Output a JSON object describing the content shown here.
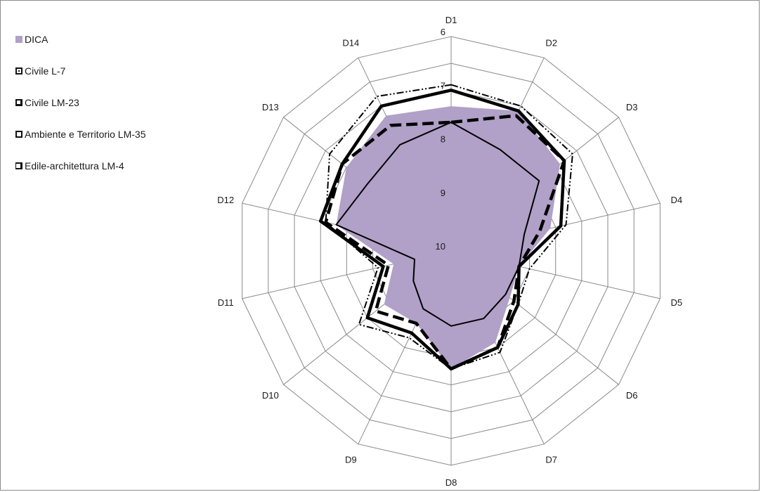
{
  "chart_data": {
    "type": "radar",
    "title": "",
    "axes": [
      "D1",
      "D2",
      "D3",
      "D4",
      "D5",
      "D6",
      "D7",
      "D8",
      "D9",
      "D10",
      "D11",
      "D12",
      "D13",
      "D14"
    ],
    "scale": {
      "center": 10,
      "outer": 6,
      "ticks": [
        "6",
        "7",
        "8",
        "9",
        "10"
      ],
      "reversed": true,
      "grid_rings": 8
    },
    "legend_position": "left",
    "series": [
      {
        "name": "DICA",
        "style": "area",
        "color": "#b1a0c7",
        "values": [
          7.3,
          7.1,
          7.4,
          8.1,
          8.7,
          8.6,
          8.1,
          7.8,
          8.5,
          8.4,
          8.9,
          7.8,
          7.5,
          7.2
        ]
      },
      {
        "name": "Civile L-7",
        "style": "solid-thick",
        "color": "#000000",
        "values": [
          7.0,
          7.1,
          7.3,
          7.9,
          8.7,
          8.4,
          8.0,
          7.8,
          8.3,
          8.0,
          8.7,
          7.5,
          7.4,
          7.0
        ]
      },
      {
        "name": "Civile LM-23",
        "style": "dash-dot",
        "color": "#000000",
        "values": [
          6.9,
          7.0,
          7.1,
          7.8,
          8.5,
          8.4,
          7.9,
          7.8,
          8.2,
          7.8,
          8.6,
          7.6,
          7.1,
          6.8
        ]
      },
      {
        "name": "Ambiente e Territorio LM-35",
        "style": "solid",
        "color": "#000000",
        "values": [
          7.6,
          7.9,
          7.9,
          8.6,
          8.7,
          8.7,
          8.6,
          8.6,
          8.8,
          9.1,
          9.3,
          7.8,
          8.0,
          7.8
        ]
      },
      {
        "name": "Edile-architettura LM-4",
        "style": "dash-thick",
        "color": "#000000",
        "values": [
          7.6,
          7.2,
          7.3,
          8.3,
          8.7,
          8.5,
          8.0,
          7.8,
          8.5,
          8.2,
          8.8,
          7.6,
          7.4,
          7.4
        ]
      }
    ]
  }
}
